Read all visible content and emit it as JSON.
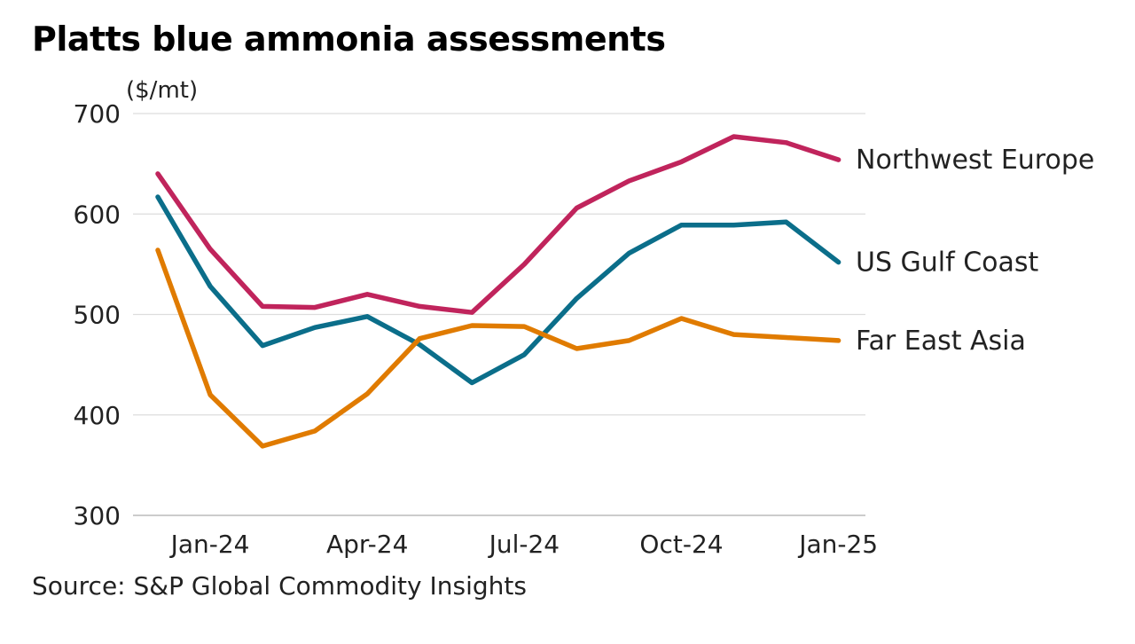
{
  "chart_data": {
    "type": "line",
    "title": "Platts blue ammonia assessments",
    "ylabel": "($/mt)",
    "xlabel": "",
    "ylim": [
      300,
      700
    ],
    "yticks": [
      300,
      400,
      500,
      600,
      700
    ],
    "grid": true,
    "x": [
      "2023-12",
      "2024-01",
      "2024-02",
      "2024-03",
      "2024-04",
      "2024-05",
      "2024-06",
      "2024-07",
      "2024-08",
      "2024-09",
      "2024-10",
      "2024-11",
      "2024-12",
      "2025-01"
    ],
    "xtick_labels": [
      {
        "x": "2024-01",
        "label": "Jan-24"
      },
      {
        "x": "2024-04",
        "label": "Apr-24"
      },
      {
        "x": "2024-07",
        "label": "Jul-24"
      },
      {
        "x": "2024-10",
        "label": "Oct-24"
      },
      {
        "x": "2025-01",
        "label": "Jan-25"
      }
    ],
    "series": [
      {
        "name": "Northwest Europe",
        "color": "#c0245c",
        "values": [
          640,
          565,
          508,
          507,
          520,
          508,
          502,
          550,
          606,
          633,
          652,
          677,
          671,
          654
        ]
      },
      {
        "name": "US Gulf Coast",
        "color": "#0b6e8a",
        "values": [
          617,
          528,
          469,
          487,
          498,
          470,
          432,
          460,
          516,
          561,
          589,
          589,
          592,
          552
        ]
      },
      {
        "name": "Far East Asia",
        "color": "#e07b00",
        "values": [
          564,
          420,
          369,
          384,
          421,
          476,
          489,
          488,
          466,
          474,
          496,
          480,
          477,
          474
        ]
      }
    ]
  },
  "source": "Source: S&P Global Commodity Insights"
}
